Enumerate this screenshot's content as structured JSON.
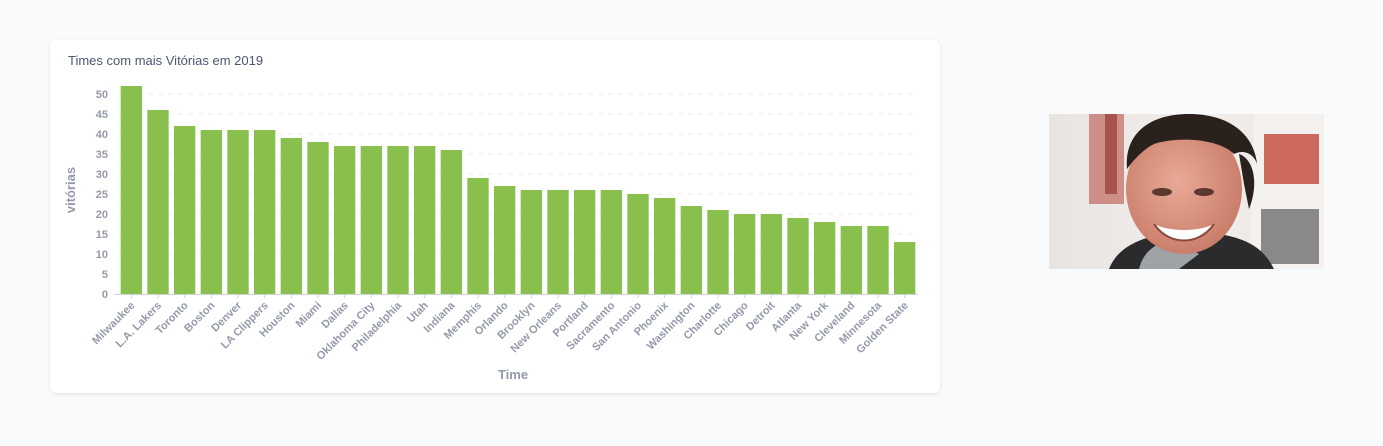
{
  "chart_data": {
    "type": "bar",
    "title": "Times com mais Vitórias em 2019",
    "xlabel": "Time",
    "ylabel": "vitórias",
    "ylim": [
      0,
      50
    ],
    "yticks": [
      0,
      5,
      10,
      15,
      20,
      25,
      30,
      35,
      40,
      45,
      50
    ],
    "grid": true,
    "bar_color": "#88bf4d",
    "categories": [
      "Milwaukee",
      "L.A. Lakers",
      "Toronto",
      "Boston",
      "Denver",
      "LA Clippers",
      "Houston",
      "Miami",
      "Dallas",
      "Oklahoma City",
      "Philadelphia",
      "Utah",
      "Indiana",
      "Memphis",
      "Orlando",
      "Brooklyn",
      "New Orleans",
      "Portland",
      "Sacramento",
      "San Antonio",
      "Phoenix",
      "Washington",
      "Charlotte",
      "Chicago",
      "Detroit",
      "Atlanta",
      "New York",
      "Cleveland",
      "Minnesota",
      "Golden State"
    ],
    "values": [
      52,
      46,
      42,
      41,
      41,
      41,
      39,
      38,
      37,
      37,
      37,
      37,
      36,
      29,
      27,
      26,
      26,
      26,
      26,
      25,
      24,
      22,
      21,
      20,
      20,
      19,
      18,
      17,
      17,
      13
    ]
  }
}
